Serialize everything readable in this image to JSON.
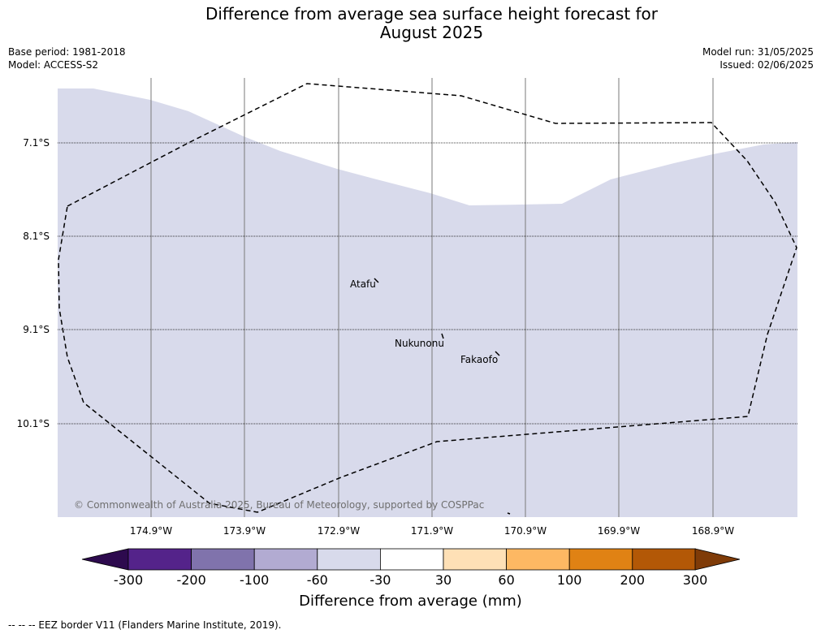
{
  "title_line1": "Difference from average sea surface height forecast for",
  "title_line2": "August 2025",
  "base_period": "Base period: 1981-2018",
  "model": "Model: ACCESS-S2",
  "model_run": "Model run: 31/05/2025",
  "issued": "Issued: 02/06/2025",
  "lat_labels": [
    "7.1°S",
    "8.1°S",
    "9.1°S",
    "10.1°S"
  ],
  "lon_labels": [
    "174.9°W",
    "173.9°W",
    "172.9°W",
    "171.9°W",
    "170.9°W",
    "169.9°W",
    "168.9°W"
  ],
  "places": [
    "Atafu",
    "Nukunonu",
    "Fakaofo"
  ],
  "copyright": "© Commonwealth of Australia 2025, Bureau of Meteorology, supported by COSPPac",
  "colorbar": {
    "ticks": [
      "-300",
      "-200",
      "-100",
      "-60",
      "-30",
      "30",
      "60",
      "100",
      "200",
      "300"
    ],
    "colors": [
      "#2d0a4e",
      "#54238a",
      "#8073ac",
      "#b2abd2",
      "#d8daeb",
      "#ffffff",
      "#fee0b6",
      "#fdb863",
      "#e08214",
      "#b35806",
      "#7f3b08"
    ],
    "label": "Difference from average (mm)"
  },
  "map": {
    "ocean_fill": "#d8daeb",
    "unshaded_fill": "#ffffff"
  },
  "footnote": "--  --  -- EEZ border V11 (Flanders Marine Institute, 2019)."
}
